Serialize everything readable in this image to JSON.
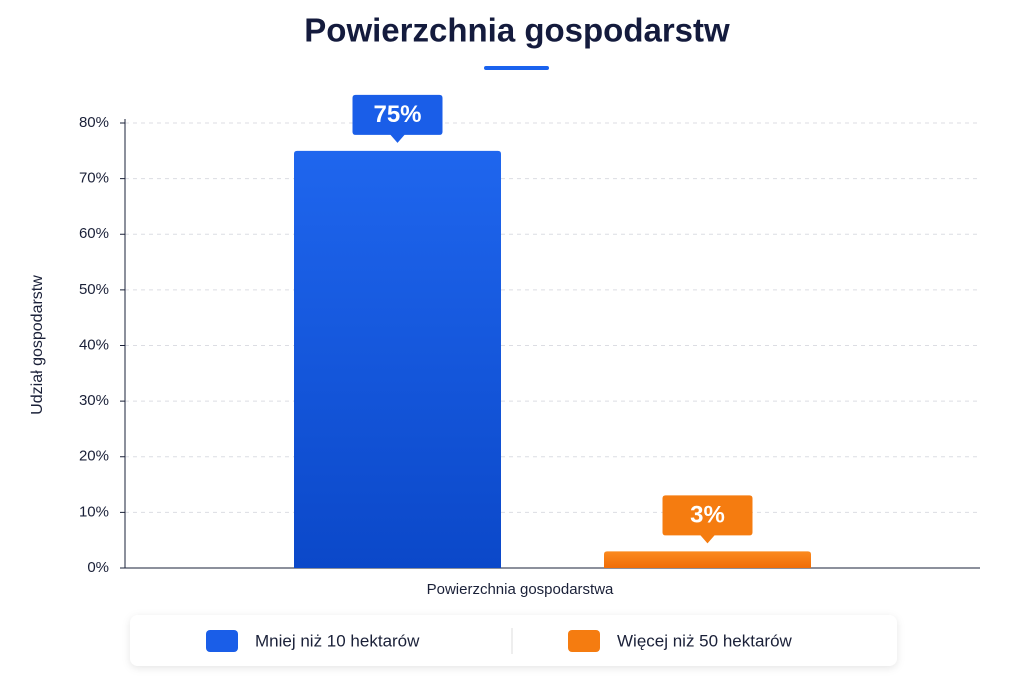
{
  "chart_data": {
    "type": "bar",
    "title": "Powierzchnia gospodarstw",
    "x_label": "Powierzchnia gospodarstwa",
    "y_label": "Udział gospodarstw",
    "categories": [
      null
    ],
    "series": [
      {
        "name": "Mniej niż 10 hektarów",
        "color": "#1a5ee8",
        "values": [
          75
        ],
        "value_labels": [
          "75%"
        ]
      },
      {
        "name": "Więcej niż 50 hektarów",
        "color": "#f57c10",
        "values": [
          3
        ],
        "value_labels": [
          "3%"
        ]
      }
    ],
    "ylim": [
      0,
      80
    ],
    "yticks": [
      {
        "value": 0,
        "label": "0%"
      },
      {
        "value": 10,
        "label": "10%"
      },
      {
        "value": 20,
        "label": "20%"
      },
      {
        "value": 30,
        "label": "30%"
      },
      {
        "value": 40,
        "label": "40%"
      },
      {
        "value": 50,
        "label": "50%"
      },
      {
        "value": 60,
        "label": "60%"
      },
      {
        "value": 70,
        "label": "70%"
      },
      {
        "value": 80,
        "label": "80%"
      }
    ],
    "grid": true
  }
}
